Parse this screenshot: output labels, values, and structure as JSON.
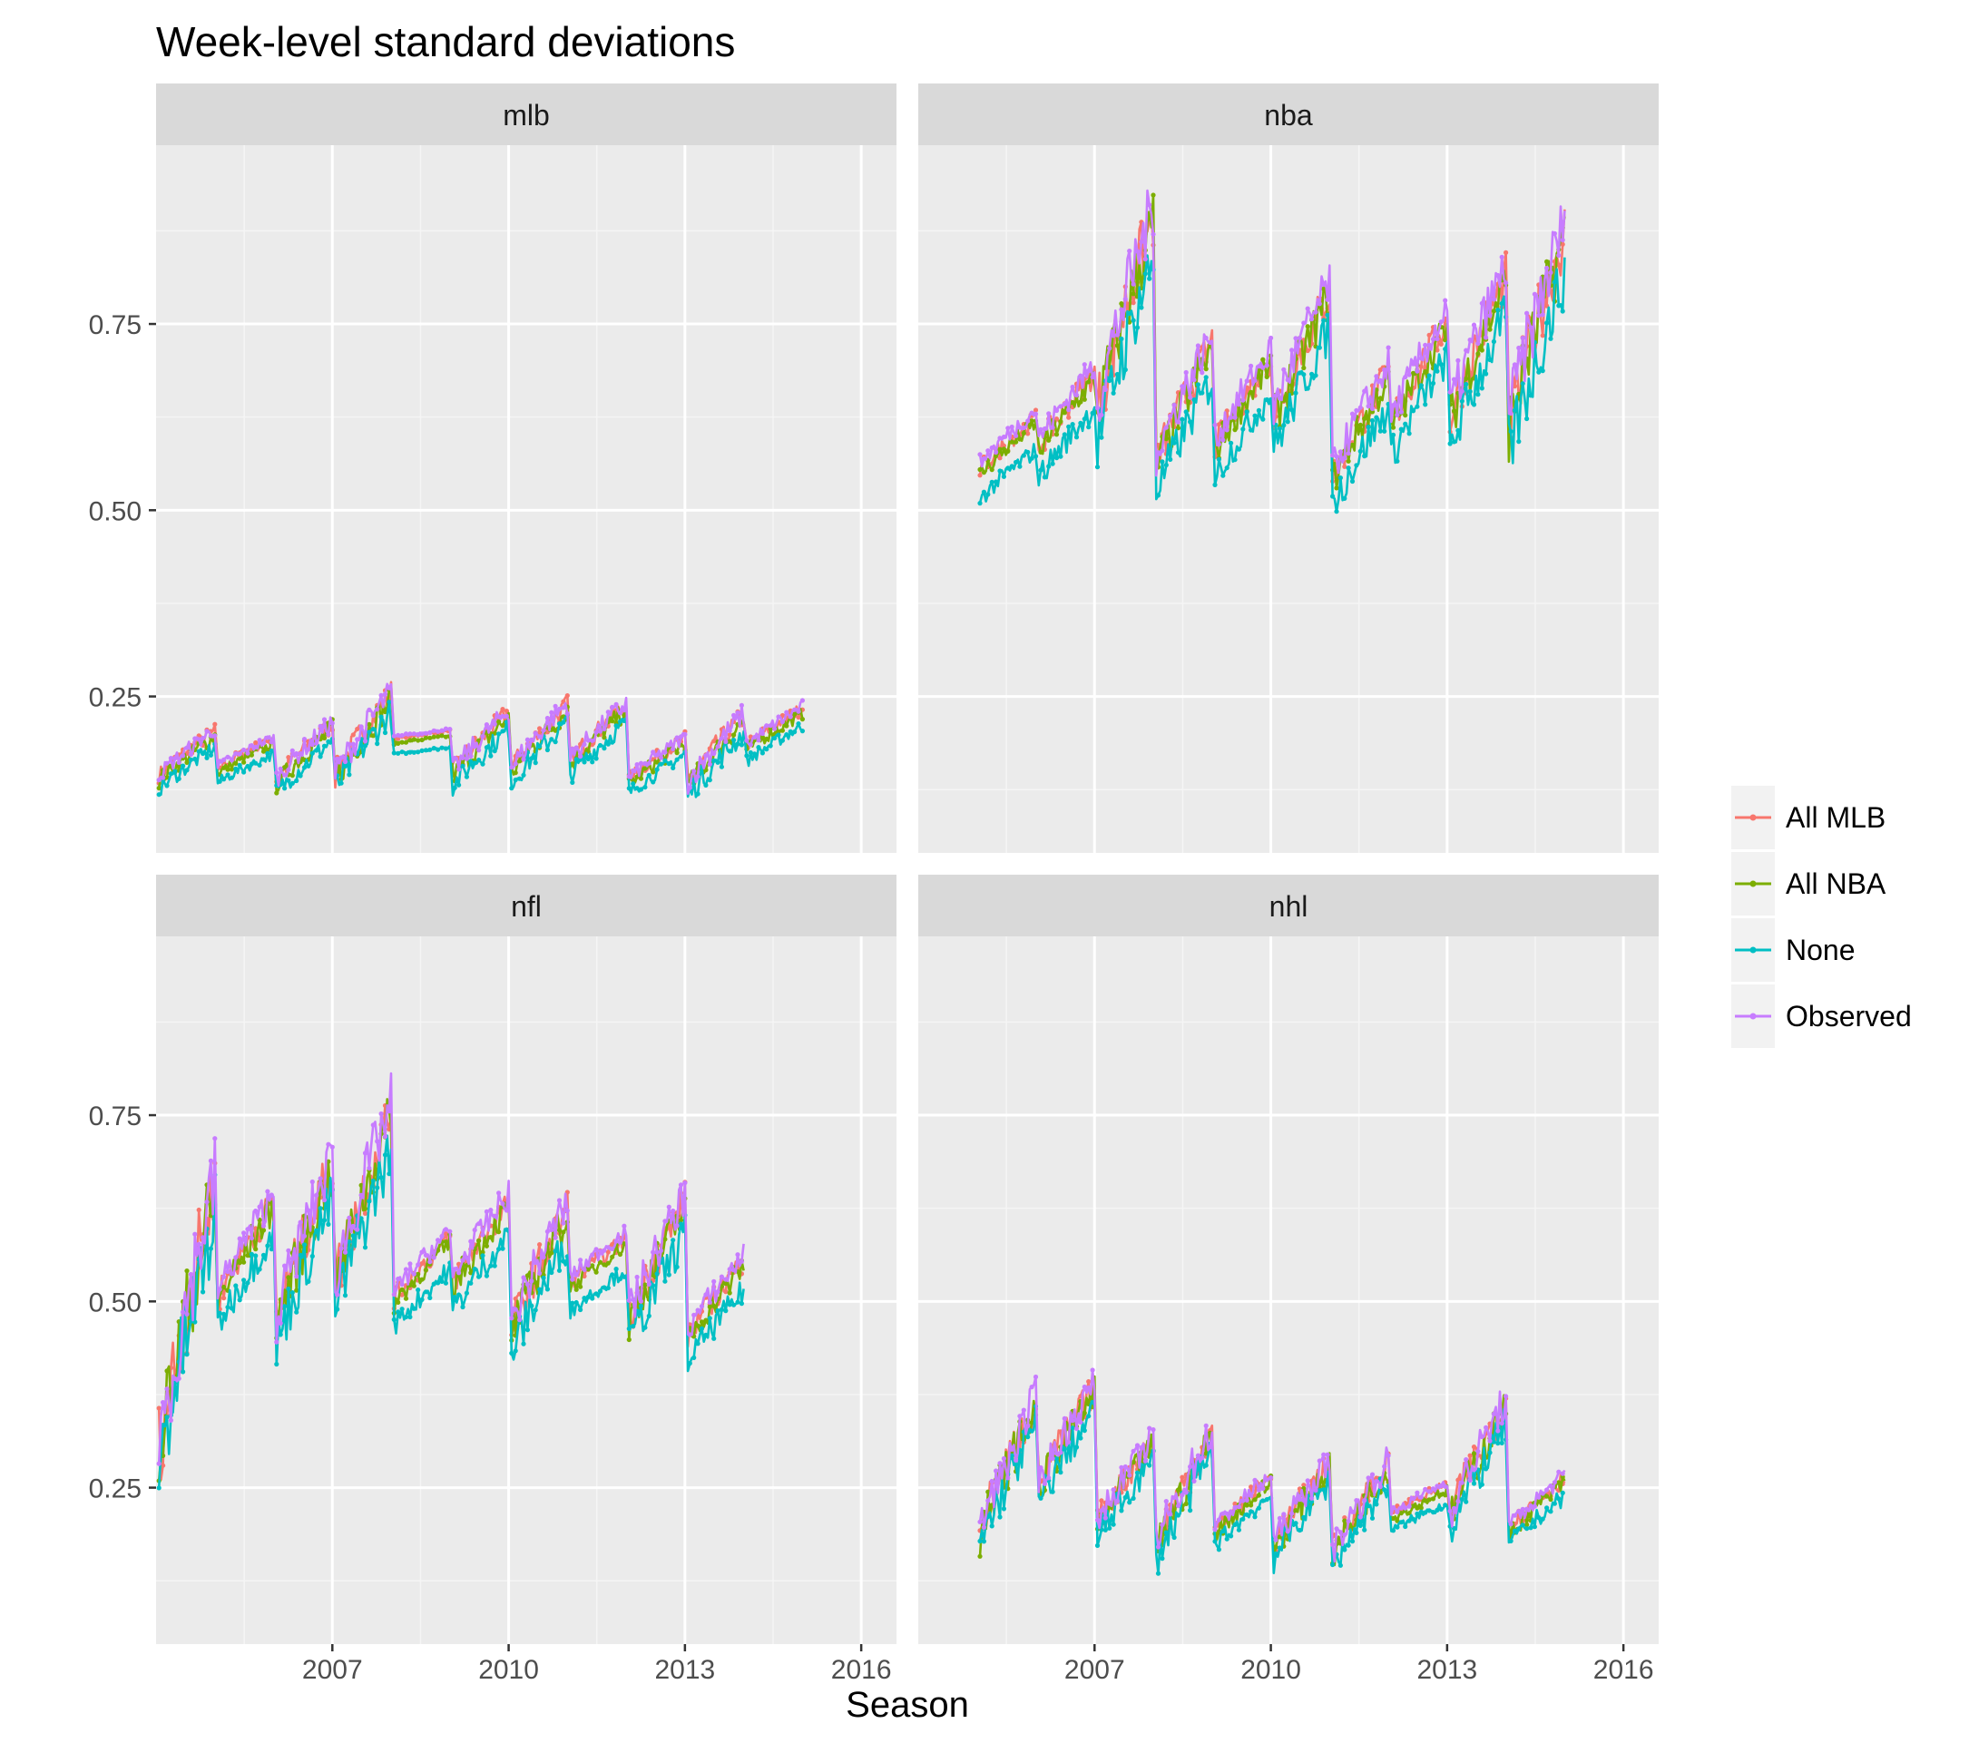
{
  "chart_data": {
    "type": "line",
    "title": "Week-level standard deviations",
    "xlabel": "Season",
    "ylabel": "",
    "xlim": [
      2004.0,
      2016.6
    ],
    "ylim": [
      0.04,
      0.99
    ],
    "x_ticks": [
      2007,
      2010,
      2013,
      2016
    ],
    "y_ticks": [
      0.25,
      0.5,
      0.75
    ],
    "grid": true,
    "legend_position": "right",
    "colors": {
      "All MLB": "#F8766D",
      "All NBA": "#7CAE00",
      "None": "#00BFC4",
      "Observed": "#C77CFF"
    },
    "legend": [
      "All MLB",
      "All NBA",
      "None",
      "Observed"
    ],
    "panels": [
      {
        "name": "mlb",
        "seasons": [
          2005,
          2006,
          2007,
          2008,
          2009,
          2010,
          2011,
          2012,
          2013,
          2014,
          2015
        ],
        "season_lo": [
          0.14,
          0.15,
          0.135,
          0.14,
          0.19,
          0.145,
          0.15,
          0.16,
          0.135,
          0.13,
          0.18
        ],
        "season_hi": [
          0.2,
          0.19,
          0.21,
          0.25,
          0.2,
          0.225,
          0.235,
          0.235,
          0.19,
          0.22,
          0.23
        ]
      },
      {
        "name": "nba",
        "seasons": [
          2006,
          2007,
          2008,
          2009,
          2010,
          2011,
          2012,
          2013,
          2014,
          2015
        ],
        "season_lo": [
          0.55,
          0.58,
          0.63,
          0.56,
          0.58,
          0.62,
          0.54,
          0.61,
          0.62,
          0.61
        ],
        "season_hi": [
          0.62,
          0.68,
          0.89,
          0.72,
          0.7,
          0.79,
          0.68,
          0.75,
          0.81,
          0.87
        ]
      },
      {
        "name": "nfl",
        "seasons": [
          2005,
          2006,
          2007,
          2008,
          2009,
          2010,
          2011,
          2012,
          2013,
          2014
        ],
        "season_lo": [
          0.3,
          0.5,
          0.47,
          0.52,
          0.5,
          0.52,
          0.46,
          0.52,
          0.47,
          0.45
        ],
        "season_hi": [
          0.65,
          0.63,
          0.68,
          0.75,
          0.58,
          0.63,
          0.62,
          0.58,
          0.63,
          0.55
        ]
      },
      {
        "name": "nhl",
        "seasons": [
          2006,
          2007,
          2008,
          2009,
          2010,
          2011,
          2012,
          2013,
          2014,
          2015
        ],
        "season_lo": [
          0.19,
          0.25,
          0.2,
          0.17,
          0.19,
          0.17,
          0.16,
          0.21,
          0.21,
          0.19
        ],
        "season_hi": [
          0.36,
          0.38,
          0.31,
          0.32,
          0.26,
          0.28,
          0.28,
          0.25,
          0.36,
          0.26
        ]
      }
    ]
  }
}
